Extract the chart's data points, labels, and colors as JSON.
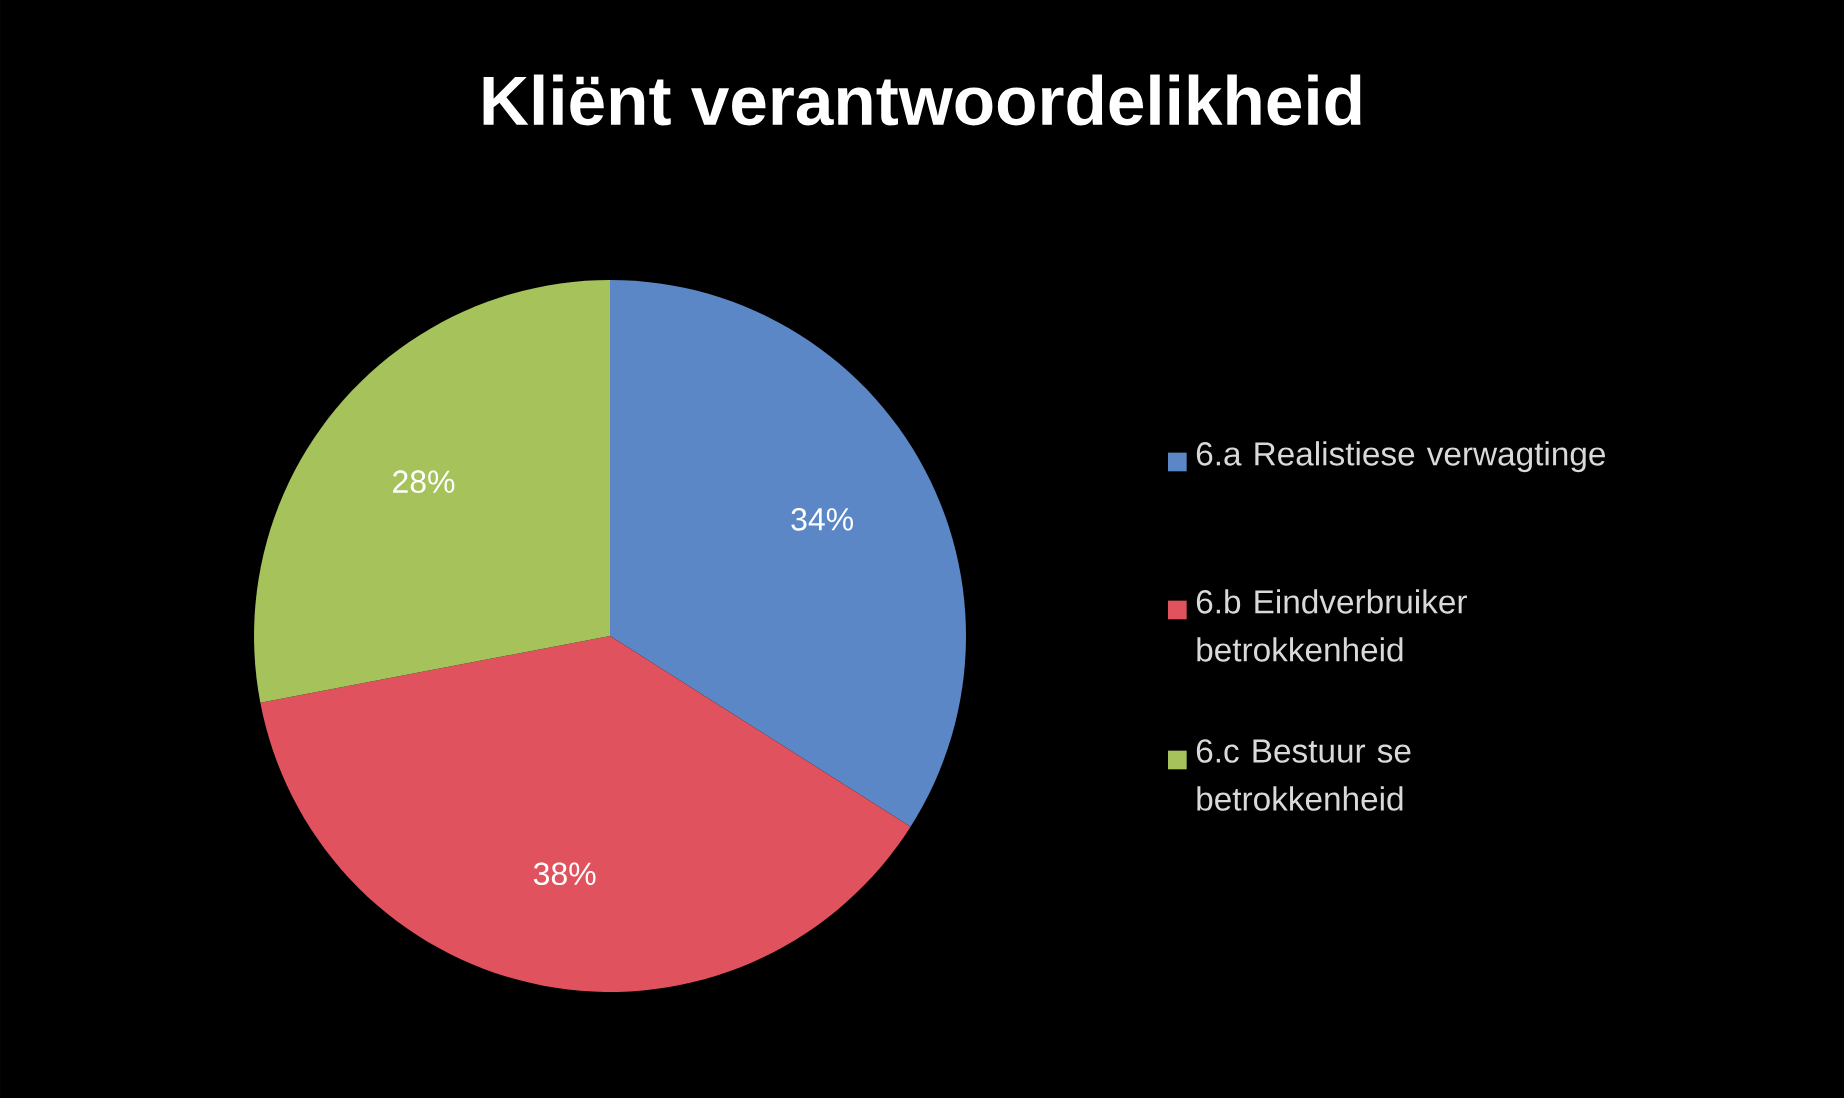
{
  "chart_data": {
    "type": "pie",
    "title": "Kliënt verantwoordelikheid",
    "categories": [
      "6.a Realistiese verwagtinge",
      "6.b Eindverbruiker betrokkenheid",
      "6.c Bestuur se betrokkenheid"
    ],
    "values": [
      34,
      38,
      28
    ],
    "value_labels": [
      "34%",
      "38%",
      "28%"
    ],
    "colors": [
      "#5b87c6",
      "#e0525e",
      "#a6c25a"
    ],
    "legend": "right"
  }
}
